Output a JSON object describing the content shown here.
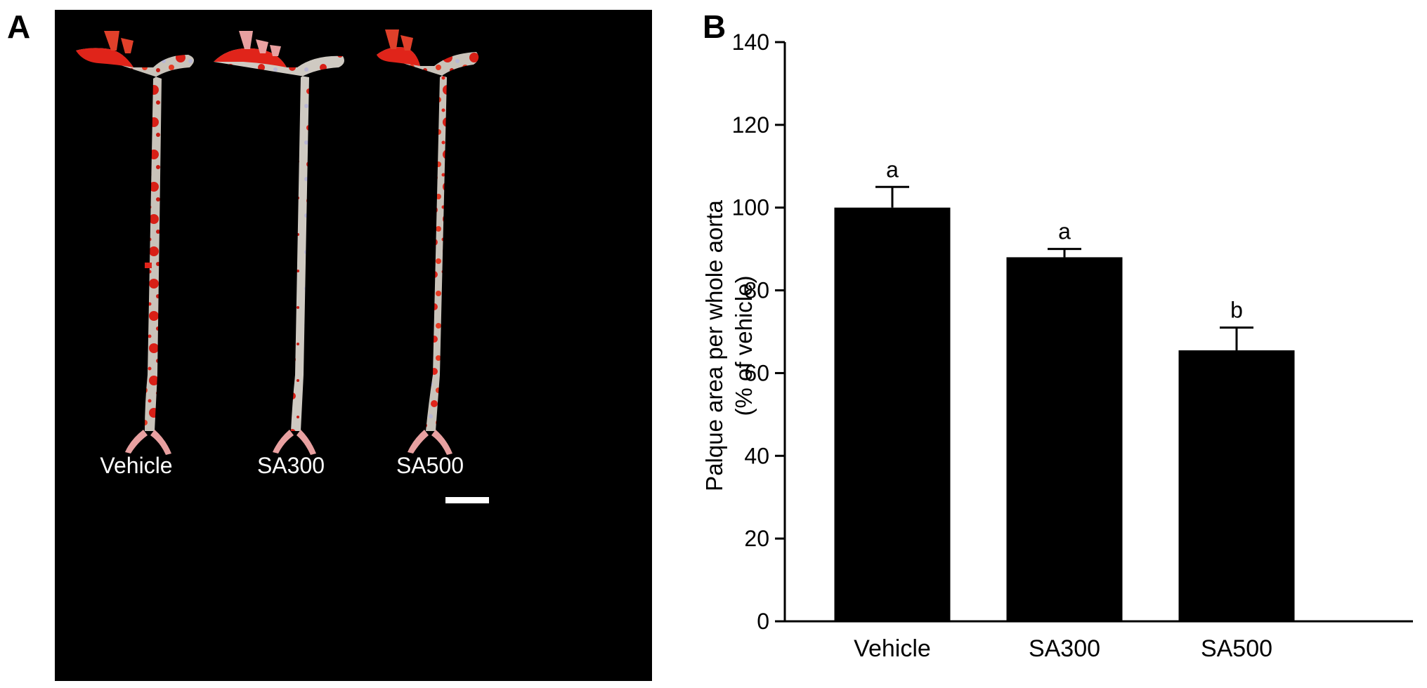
{
  "figure": {
    "panel_a_label": "A",
    "panel_b_label": "B"
  },
  "photo_panel": {
    "description_icons": [
      "aorta-specimen",
      "aorta-specimen",
      "aorta-specimen"
    ],
    "labels": [
      "Vehicle",
      "SA300",
      "SA500"
    ],
    "scale_bar": true,
    "colors": {
      "background": "#000000",
      "tissue": "#c8c2b8",
      "stain": "#e0241a"
    }
  },
  "chart_data": {
    "type": "bar",
    "categories": [
      "Vehicle",
      "SA300",
      "SA500"
    ],
    "values": [
      100,
      88,
      65.5
    ],
    "errors": [
      5,
      2,
      5.5
    ],
    "significance": [
      "a",
      "a",
      "b"
    ],
    "ylabel_lines": [
      "Palque area per whole aorta",
      "(% of vehicle)"
    ],
    "ylim": [
      0,
      140
    ],
    "yticks": [
      0,
      20,
      40,
      60,
      80,
      100,
      120,
      140
    ],
    "grid": false,
    "legend": false,
    "bar_color": "#000000"
  }
}
